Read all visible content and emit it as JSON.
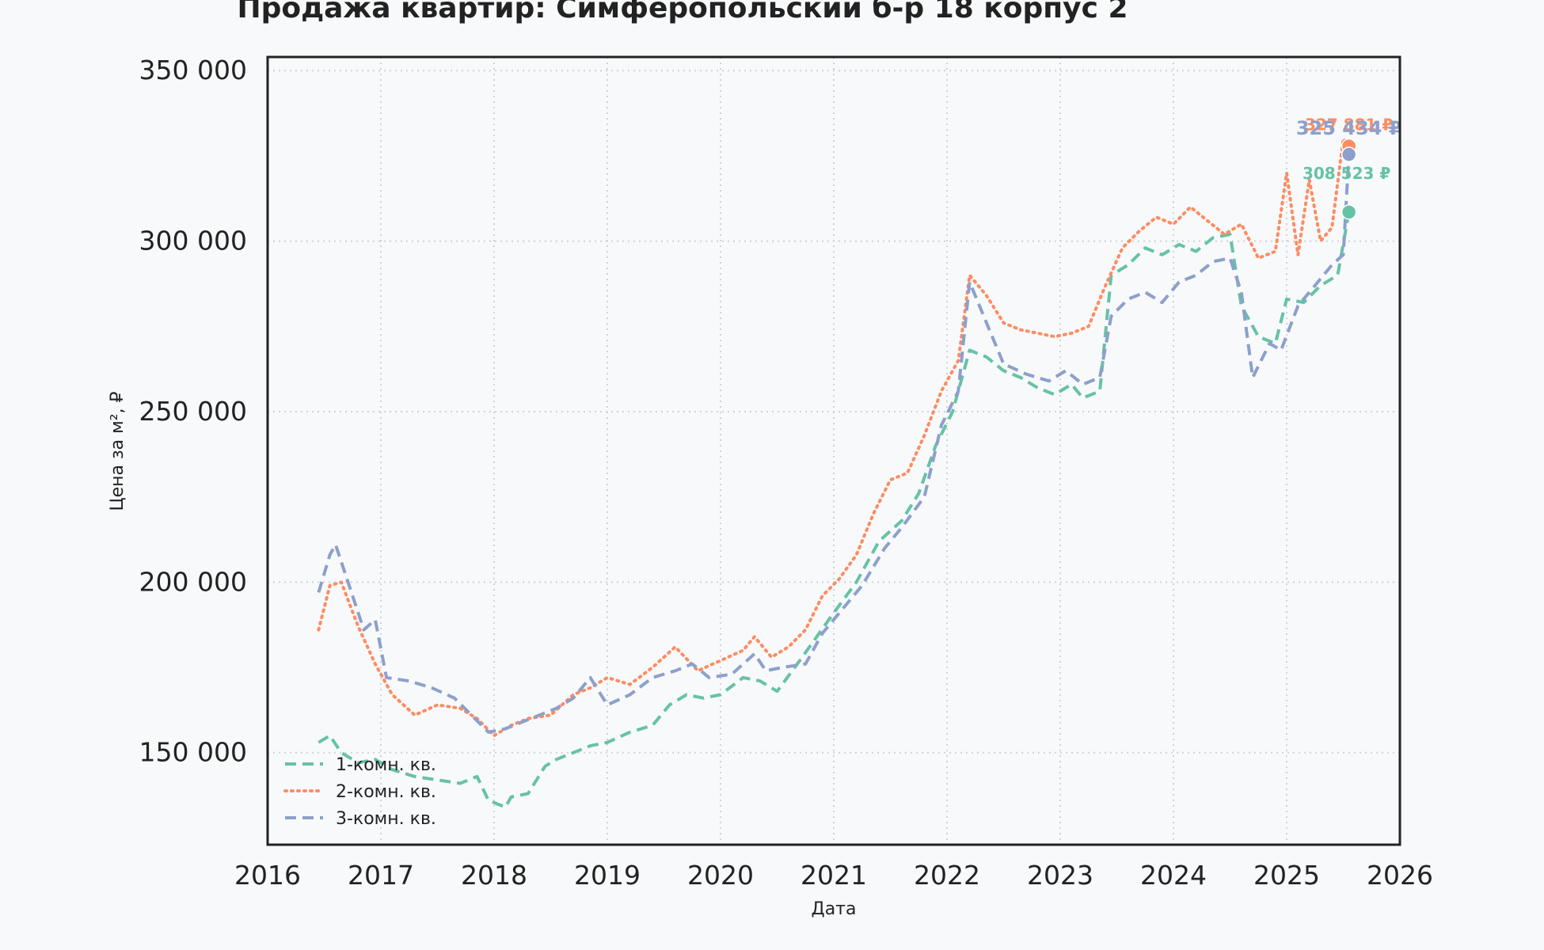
{
  "chart_data": {
    "type": "line",
    "title": "Продажа квартир: Симферопольский б-р 18 корпус 2",
    "xlabel": "Дата",
    "ylabel": "Цена за м², ₽",
    "xlim": [
      2016.0,
      2026.0
    ],
    "ylim": [
      123000,
      354000
    ],
    "x_ticks": [
      2016,
      2017,
      2018,
      2019,
      2020,
      2021,
      2022,
      2023,
      2024,
      2025,
      2026
    ],
    "x_tick_labels": [
      "2016",
      "2017",
      "2018",
      "2019",
      "2020",
      "2021",
      "2022",
      "2023",
      "2024",
      "2025",
      "2026"
    ],
    "y_ticks": [
      150000,
      200000,
      250000,
      300000,
      350000
    ],
    "y_tick_labels": [
      "150 000",
      "200 000",
      "250 000",
      "300 000",
      "350 000"
    ],
    "grid": true,
    "legend_position": "bottom-left",
    "series": [
      {
        "name": "1-комн. кв.",
        "color": "#66c2a5",
        "dash": "dashed",
        "end_label": "308 523 ₽",
        "end_value": 308523,
        "x": [
          2016.45,
          2016.55,
          2016.65,
          2016.8,
          2016.95,
          2017.1,
          2017.3,
          2017.5,
          2017.7,
          2017.85,
          2017.95,
          2018.1,
          2018.15,
          2018.3,
          2018.45,
          2018.55,
          2018.7,
          2018.85,
          2019.0,
          2019.2,
          2019.4,
          2019.55,
          2019.7,
          2019.85,
          2020.0,
          2020.2,
          2020.35,
          2020.5,
          2020.7,
          2020.85,
          2021.0,
          2021.2,
          2021.4,
          2021.6,
          2021.75,
          2021.9,
          2022.05,
          2022.2,
          2022.35,
          2022.5,
          2022.65,
          2022.8,
          2022.95,
          2023.1,
          2023.2,
          2023.35,
          2023.45,
          2023.6,
          2023.75,
          2023.9,
          2024.05,
          2024.2,
          2024.35,
          2024.5,
          2024.6,
          2024.75,
          2024.9,
          2025.0,
          2025.15,
          2025.3,
          2025.45,
          2025.55
        ],
        "y": [
          153000,
          155000,
          150000,
          147000,
          148000,
          145000,
          143000,
          142000,
          141000,
          143000,
          136000,
          134000,
          137000,
          138000,
          146000,
          148000,
          150000,
          152000,
          153000,
          156000,
          158000,
          164000,
          167000,
          166000,
          167000,
          172000,
          171000,
          168000,
          177000,
          184000,
          191000,
          200000,
          212000,
          218000,
          226000,
          240000,
          250000,
          268000,
          266000,
          262000,
          260000,
          257000,
          255000,
          258000,
          254000,
          256000,
          290000,
          293000,
          298000,
          296000,
          299000,
          297000,
          301000,
          302000,
          281000,
          272000,
          270000,
          283000,
          282000,
          287000,
          290000,
          308523
        ]
      },
      {
        "name": "2-комн. кв.",
        "color": "#fc8d62",
        "dash": "dotted",
        "end_label": "327 881 ₽",
        "end_value": 327881,
        "x": [
          2016.45,
          2016.55,
          2016.65,
          2016.8,
          2016.95,
          2017.1,
          2017.3,
          2017.5,
          2017.7,
          2017.85,
          2018.0,
          2018.15,
          2018.3,
          2018.5,
          2018.7,
          2018.85,
          2019.0,
          2019.2,
          2019.4,
          2019.6,
          2019.8,
          2020.0,
          2020.2,
          2020.3,
          2020.45,
          2020.6,
          2020.75,
          2020.9,
          2021.05,
          2021.2,
          2021.35,
          2021.5,
          2021.65,
          2021.8,
          2021.95,
          2022.1,
          2022.2,
          2022.35,
          2022.5,
          2022.65,
          2022.8,
          2022.95,
          2023.1,
          2023.25,
          2023.4,
          2023.55,
          2023.7,
          2023.85,
          2024.0,
          2024.15,
          2024.3,
          2024.45,
          2024.6,
          2024.75,
          2024.9,
          2025.0,
          2025.1,
          2025.2,
          2025.3,
          2025.4,
          2025.5,
          2025.55
        ],
        "y": [
          186000,
          199000,
          200000,
          187000,
          176000,
          167000,
          161000,
          164000,
          163000,
          160000,
          155000,
          158000,
          160000,
          161000,
          167000,
          169000,
          172000,
          170000,
          175000,
          181000,
          174000,
          177000,
          180000,
          184000,
          178000,
          181000,
          186000,
          196000,
          201000,
          208000,
          220000,
          230000,
          232000,
          243000,
          256000,
          265000,
          290000,
          284000,
          276000,
          274000,
          273000,
          272000,
          273000,
          275000,
          287000,
          298000,
          303000,
          307000,
          305000,
          310000,
          306000,
          302000,
          305000,
          295000,
          297000,
          320000,
          296000,
          318000,
          300000,
          304000,
          330000,
          327881
        ]
      },
      {
        "name": "3-комн. кв.",
        "color": "#8da0cb",
        "dash": "dashed",
        "end_label": "325 434 ₽",
        "end_value": 325434,
        "x": [
          2016.45,
          2016.55,
          2016.6,
          2016.75,
          2016.85,
          2016.95,
          2017.05,
          2017.25,
          2017.45,
          2017.65,
          2017.8,
          2017.95,
          2018.1,
          2018.25,
          2018.4,
          2018.55,
          2018.7,
          2018.85,
          2019.0,
          2019.2,
          2019.4,
          2019.6,
          2019.75,
          2019.9,
          2020.1,
          2020.3,
          2020.4,
          2020.55,
          2020.75,
          2020.9,
          2021.05,
          2021.25,
          2021.45,
          2021.6,
          2021.8,
          2021.95,
          2022.1,
          2022.2,
          2022.35,
          2022.5,
          2022.7,
          2022.9,
          2023.05,
          2023.2,
          2023.35,
          2023.45,
          2023.6,
          2023.75,
          2023.9,
          2024.05,
          2024.2,
          2024.35,
          2024.5,
          2024.6,
          2024.7,
          2024.85,
          2024.95,
          2025.1,
          2025.25,
          2025.4,
          2025.5,
          2025.55
        ],
        "y": [
          197000,
          208000,
          211000,
          196000,
          186000,
          189000,
          172000,
          171000,
          169000,
          166000,
          161000,
          156000,
          157000,
          159000,
          161000,
          163000,
          166000,
          172000,
          164000,
          167000,
          172000,
          174000,
          176000,
          172000,
          173000,
          179000,
          174000,
          175000,
          176000,
          185000,
          191000,
          199000,
          210000,
          216000,
          225000,
          246000,
          256000,
          288000,
          276000,
          264000,
          261000,
          259000,
          262000,
          258000,
          260000,
          278000,
          283000,
          285000,
          282000,
          288000,
          290000,
          294000,
          295000,
          285000,
          260000,
          270000,
          268000,
          281000,
          287000,
          293000,
          296000,
          325434
        ]
      }
    ]
  }
}
